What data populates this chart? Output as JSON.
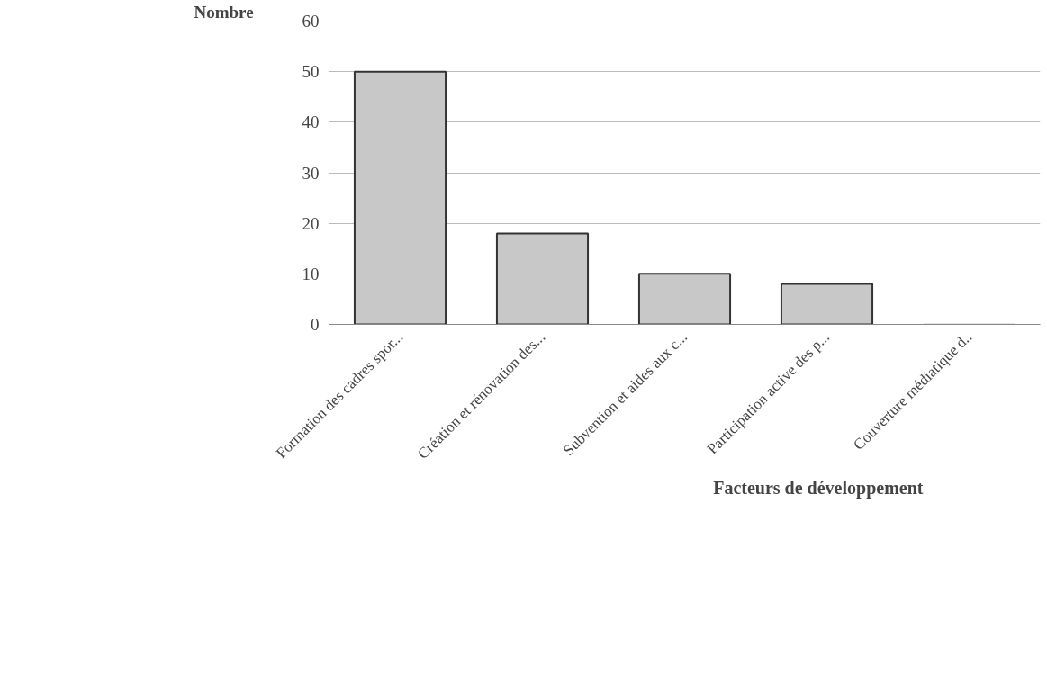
{
  "chart_data": {
    "type": "bar",
    "ylabel": "Nombre",
    "xlabel": "Facteurs de développement",
    "categories": [
      "Formation des cadres spor...",
      "Création et rénovation des...",
      "Subvention et aides aux c...",
      "Participation active des p...",
      "Couverture médiatique d.."
    ],
    "values": [
      50,
      18,
      10,
      8,
      0
    ],
    "color": "#c8c8c8",
    "ylim": [
      0,
      60
    ],
    "yticks": [
      0,
      10,
      20,
      30,
      40,
      50,
      60
    ],
    "grid": "y"
  }
}
